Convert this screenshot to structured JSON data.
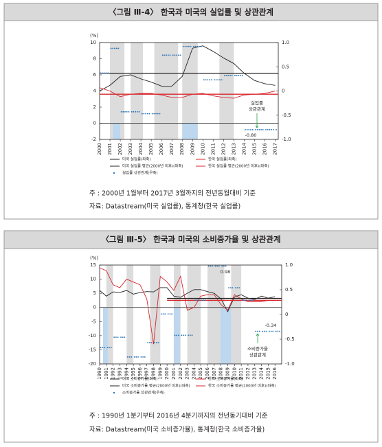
{
  "chart_data": [
    {
      "type": "line",
      "title": "〈그림 Ⅲ-4〉 한국과 미국의 실업률 및 상관관계",
      "y_unit": "(%)",
      "x": [
        2000,
        2001,
        2002,
        2003,
        2004,
        2005,
        2006,
        2007,
        2008,
        2009,
        2010,
        2011,
        2012,
        2013,
        2014,
        2015,
        2016,
        2017
      ],
      "xlim": [
        2000,
        2017.3
      ],
      "xticks": [
        2000,
        2001,
        2002,
        2003,
        2004,
        2005,
        2006,
        2007,
        2008,
        2009,
        2010,
        2011,
        2012,
        2013,
        2014,
        2015,
        2016,
        2017
      ],
      "ylim": [
        -2,
        10
      ],
      "yticks": [
        -2,
        0,
        2,
        4,
        6,
        8,
        10
      ],
      "y2lim": [
        -1,
        1
      ],
      "y2ticks": [
        {
          "value": -1,
          "label": "-1.0"
        },
        -0.5,
        0,
        0.5,
        {
          "value": 1,
          "label": "1.0"
        }
      ],
      "shaded_periods": [
        [
          2001,
          2002.4
        ],
        [
          2003,
          2004.2
        ],
        [
          2005.3,
          2007.6
        ],
        [
          2008,
          2009.5
        ],
        [
          2011.6,
          2013
        ]
      ],
      "highlight_periods": [
        [
          2001.3,
          2002
        ],
        [
          2008,
          2009.5
        ]
      ],
      "series": [
        {
          "name": "미국 실업률(좌축)",
          "color": "#231f20",
          "values": [
            4.0,
            4.7,
            5.8,
            6.0,
            5.5,
            5.1,
            4.6,
            4.6,
            5.8,
            9.3,
            9.6,
            8.9,
            8.1,
            7.4,
            6.2,
            5.3,
            4.9,
            4.7
          ]
        },
        {
          "name": "한국 실업률(좌축)",
          "color": "#d7262b",
          "values": [
            4.4,
            4.0,
            3.3,
            3.6,
            3.7,
            3.7,
            3.5,
            3.2,
            3.2,
            3.6,
            3.7,
            3.4,
            3.2,
            3.1,
            3.5,
            3.6,
            3.7,
            4.0
          ]
        },
        {
          "name": "미국 실업률 평균(2000년 이후)(좌축)",
          "color": "#231f20",
          "x": [
            2000,
            2017.3
          ],
          "values": [
            6.2,
            6.2
          ]
        },
        {
          "name": "한국 실업률 평균(2000년 이후)(좌축)",
          "color": "#d7262b",
          "x": [
            2000,
            2017.3
          ],
          "values": [
            3.6,
            3.6
          ]
        },
        {
          "name": "실업률 상관관계(우축)",
          "color": "#2e75b6",
          "axis": "y2",
          "style": "dots",
          "values": [
            0.37,
            0.88,
            -0.43,
            -0.43,
            -0.47,
            -0.47,
            0.74,
            0.74,
            0.92,
            0.92,
            0.23,
            0.23,
            0.32,
            0.32,
            -0.8,
            -0.8,
            -0.8,
            -0.8
          ]
        }
      ],
      "annotations": [
        "실업률",
        "상관관계",
        "-0.80"
      ],
      "note": "주 : 2000년 1월부터 2017년 3월까지의 전년동월대비 기준",
      "source": "자료: Datastream(미국 실업률), 통계청(한국 실업률)"
    },
    {
      "type": "line",
      "title": "〈그림 Ⅲ-5〉 한국과 미국의 소비증가율 및 상관관계",
      "y_unit": "(%)",
      "x": [
        1990,
        1991,
        1992,
        1993,
        1994,
        1995,
        1996,
        1997,
        1998,
        1999,
        2000,
        2001,
        2002,
        2003,
        2004,
        2005,
        2006,
        2007,
        2008,
        2009,
        2010,
        2011,
        2012,
        2013,
        2014,
        2015,
        2016
      ],
      "xlim": [
        1990,
        2017
      ],
      "xticks": [
        1990,
        1991,
        1992,
        1993,
        1994,
        1995,
        1996,
        1997,
        1998,
        1999,
        2000,
        2001,
        2002,
        2003,
        2004,
        2005,
        2006,
        2007,
        2008,
        2009,
        2010,
        2011,
        2012,
        2013,
        2014,
        2015,
        2016
      ],
      "ylim": [
        -20,
        15
      ],
      "yticks": [
        -20,
        -15,
        -10,
        -5,
        0,
        5,
        10,
        15
      ],
      "y2lim": [
        -1,
        1
      ],
      "y2ticks": [
        {
          "value": -1,
          "label": "-1.0"
        },
        -0.5,
        0,
        0.5,
        {
          "value": 1,
          "label": "1.0"
        }
      ],
      "shaded_periods": [
        [
          1991,
          1992
        ],
        [
          1994,
          1995
        ],
        [
          1997.5,
          1999
        ],
        [
          2001,
          2002
        ],
        [
          2003,
          2005
        ],
        [
          2006,
          2008.5
        ],
        [
          2009.5,
          2011
        ]
      ],
      "highlight_periods": [
        [
          1990.5,
          1991.2
        ],
        [
          2001,
          2001.9
        ],
        [
          2007.9,
          2009.5
        ]
      ],
      "series": [
        {
          "name": "미국 소비증가율(좌축)",
          "color": "#231f20",
          "values": [
            6,
            4,
            5.5,
            5.3,
            6,
            4.7,
            5.3,
            5.6,
            5.5,
            7,
            7,
            4,
            3.6,
            5,
            6.3,
            6.3,
            5.6,
            5,
            3,
            -1.5,
            3.7,
            4.5,
            3.3,
            2.8,
            4,
            3.3,
            3.8
          ]
        },
        {
          "name": "한국 소비증가율(좌축)",
          "color": "#d7262b",
          "values": [
            14,
            13,
            8,
            7,
            10,
            9,
            8,
            3,
            -13,
            11,
            9,
            6,
            11,
            -1,
            0,
            4,
            4.5,
            4.5,
            1,
            -1,
            4.5,
            3,
            2,
            2,
            2,
            2.5,
            2.5
          ]
        },
        {
          "name": "미국 소비증가율 평균(2000년 이후)(좌축)",
          "color": "#231f20",
          "x": [
            2000,
            2017
          ],
          "values": [
            3.2,
            3.2
          ]
        },
        {
          "name": "한국 소비증가율 평균(2000년 이후)(좌축)",
          "color": "#d7262b",
          "x": [
            2000,
            2017
          ],
          "values": [
            2.5,
            2.5
          ]
        },
        {
          "name": "소비증가율 상관관계(우축)",
          "color": "#2e75b6",
          "axis": "y2",
          "style": "dots",
          "values": [
            -0.67,
            -0.67,
            -0.46,
            -0.46,
            -0.86,
            -0.86,
            -0.86,
            -0.57,
            -0.57,
            0.01,
            0.01,
            -0.42,
            -0.42,
            -0.42,
            0.29,
            0.29,
            0.98,
            0.98,
            0.98,
            0.54,
            0.54,
            0.29,
            0.29,
            -0.34,
            -0.34,
            -0.34,
            -0.34
          ]
        }
      ],
      "annotations": [
        "소비증가율",
        "상관관계",
        "0.98",
        "-0.34"
      ],
      "note": "주 : 1990년 1분기부터 2016년 4분기까지의 전년동기대비 기준",
      "source": "자료: Datastream(미국 소비증가율), 통계청(한국 소비증가율)"
    }
  ]
}
